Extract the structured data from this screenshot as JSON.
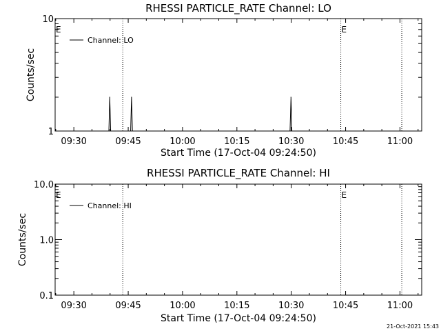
{
  "footer": {
    "timestamp": "21-Oct-2021 15:43"
  },
  "chart_data": [
    {
      "type": "line",
      "title": "RHESSI PARTICLE_RATE Channel: LO",
      "xlabel": "Start Time (17-Oct-04 09:24:50)",
      "ylabel": "Counts/sec",
      "yscale": "log",
      "ylim": [
        1,
        10
      ],
      "xlim": [
        "09:24:50",
        "11:06:00"
      ],
      "x_ticks": [
        "09:30",
        "09:45",
        "10:00",
        "10:15",
        "10:30",
        "10:45",
        "11:00"
      ],
      "y_ticks": [
        "1",
        "10"
      ],
      "legend": {
        "placement": "top-left",
        "entries": [
          "Channel: LO"
        ]
      },
      "eclipse_markers": [
        {
          "label": "E",
          "time": "09:24:50"
        },
        {
          "label": "",
          "time": "09:43:30"
        },
        {
          "label": "E",
          "time": "10:43:40"
        },
        {
          "label": "",
          "time": "11:00:30"
        }
      ],
      "series": [
        {
          "name": "Channel: LO",
          "x": [
            "09:39:20",
            "09:39:40",
            "09:39:55",
            "09:40:10",
            "09:40:25",
            "09:45:20",
            "09:45:40",
            "09:45:55",
            "09:46:10",
            "09:46:25",
            "10:29:20",
            "10:29:40",
            "10:29:55",
            "10:30:10",
            "10:30:25"
          ],
          "y": [
            1,
            1,
            2,
            1,
            1,
            1,
            1,
            2,
            1,
            1,
            1,
            1,
            2,
            1,
            1
          ]
        }
      ]
    },
    {
      "type": "line",
      "title": "RHESSI PARTICLE_RATE Channel: HI",
      "xlabel": "Start Time (17-Oct-04 09:24:50)",
      "ylabel": "Counts/sec",
      "yscale": "log",
      "ylim": [
        0.1,
        10
      ],
      "xlim": [
        "09:24:50",
        "11:06:00"
      ],
      "x_ticks": [
        "09:30",
        "09:45",
        "10:00",
        "10:15",
        "10:30",
        "10:45",
        "11:00"
      ],
      "y_ticks": [
        "0.1",
        "1.0",
        "10.0"
      ],
      "legend": {
        "placement": "top-left",
        "entries": [
          "Channel: HI"
        ]
      },
      "eclipse_markers": [
        {
          "label": "E",
          "time": "09:24:50"
        },
        {
          "label": "",
          "time": "09:43:30"
        },
        {
          "label": "E",
          "time": "10:43:40"
        },
        {
          "label": "",
          "time": "11:00:30"
        }
      ],
      "series": [
        {
          "name": "Channel: HI",
          "x": [],
          "y": []
        }
      ]
    }
  ]
}
